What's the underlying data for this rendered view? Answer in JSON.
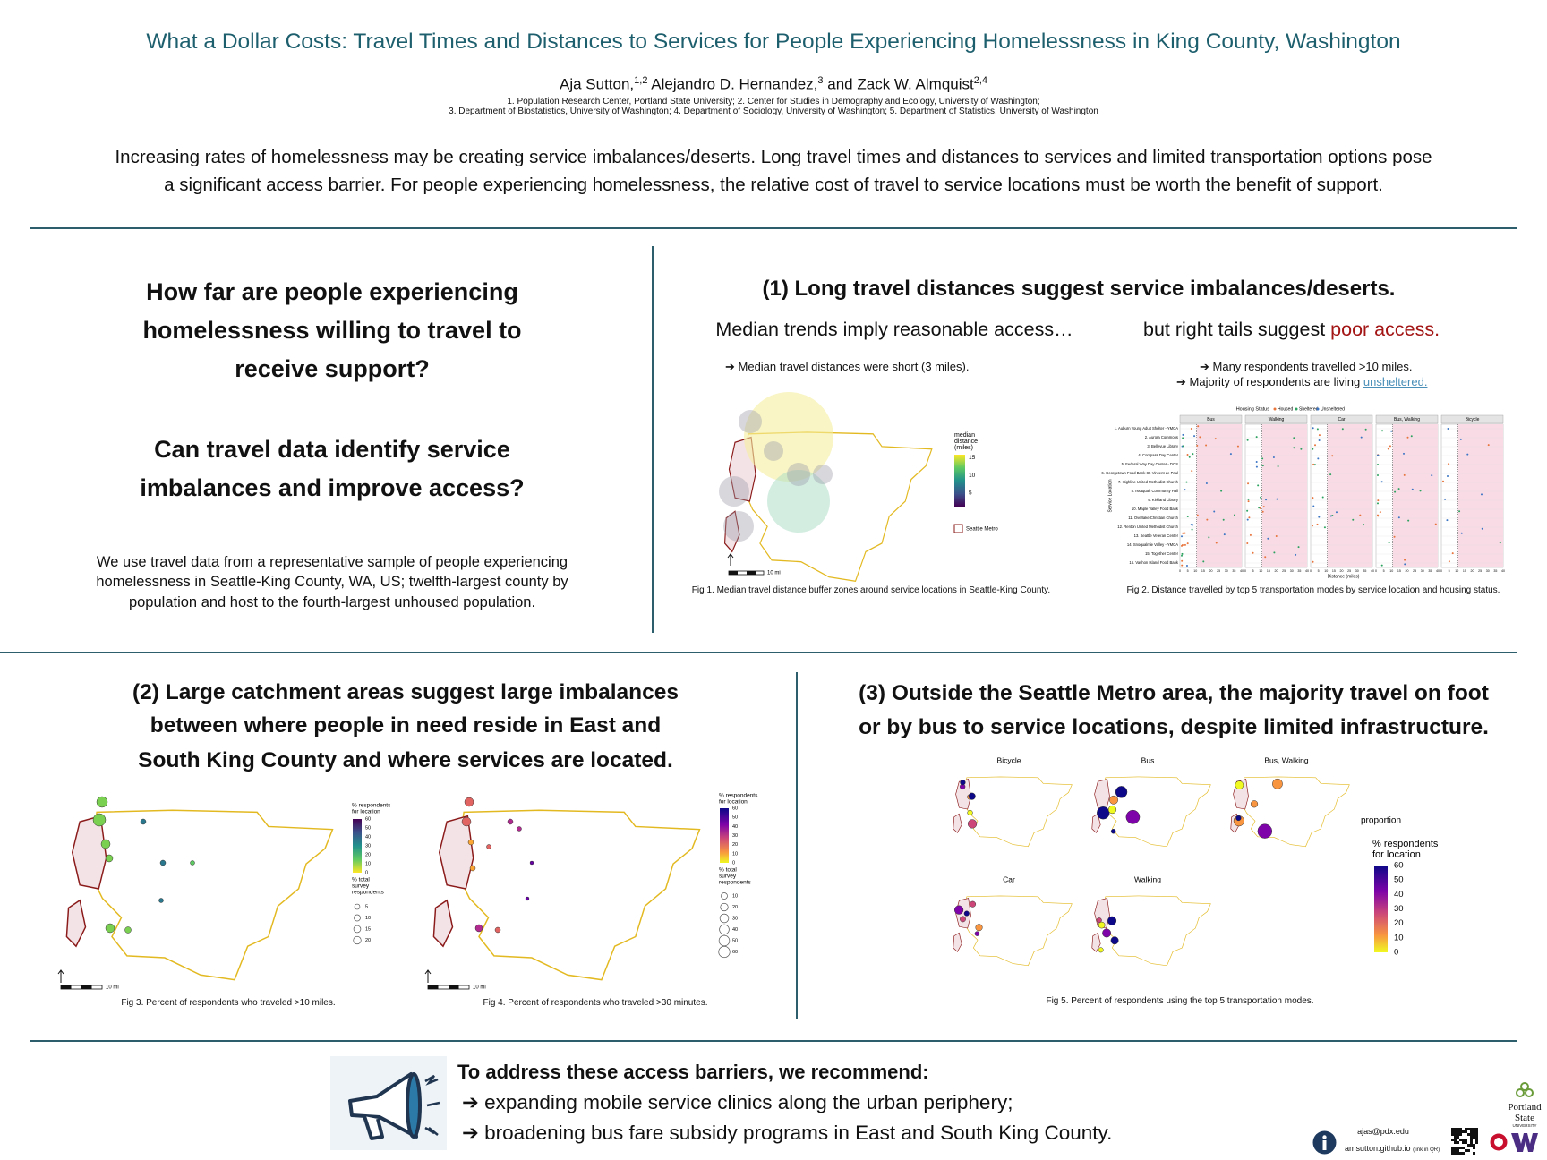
{
  "header": {
    "title": "What a Dollar Costs: Travel Times and Distances to Services for People Experiencing Homelessness in King County, Washington",
    "authors": [
      {
        "name": "Aja Sutton,",
        "sup": "1,2"
      },
      {
        "name": "Alejandro D. Hernandez,",
        "sup": "3"
      },
      {
        "name": "and Zack W. Almquist",
        "sup": "2,4"
      }
    ],
    "affiliations": [
      "1. Population Research Center, Portland State University; 2. Center for Studies in Demography and Ecology, University of Washington;",
      "3. Department of Biostatistics, University of Washington; 4. Department of Sociology, University of Washington; 5. Department of Statistics, University of Washington"
    ]
  },
  "intro": [
    "Increasing rates of homelessness may be creating service imbalances/deserts. Long travel times and distances to services and limited transportation options pose",
    "a significant access barrier. For people experiencing homelessness, the relative cost of travel to service locations must be worth the benefit of support."
  ],
  "questions": {
    "first": [
      "How far are people experiencing",
      "homelessness willing to travel to",
      "receive support?"
    ],
    "second": [
      "Can travel data identify service",
      "imbalances and improve access?"
    ],
    "description": [
      "We use travel data from a representative sample of people experiencing",
      "homelessness in Seattle-King County, WA, US; twelfth-largest county by",
      "population and host to the fourth-largest unhoused population."
    ]
  },
  "section1": {
    "heading": "(1) Long travel distances suggest service imbalances/deserts.",
    "left_subheading": "Median trends imply reasonable access…",
    "right_subheading": "but right tails suggest ",
    "right_highlight": "poor access.",
    "left_bullet": "➔ Median travel distances were short (3 miles).",
    "right_bullet": "➔ Many respondents travelled >10 miles.",
    "right_bullet_prefix": "➔ Majority of respondents are living ",
    "right_bullet_link": "unsheltered.",
    "fig1": {
      "caption": "Fig 1. Median travel distance buffer zones around service locations in Seattle-King County.",
      "legend_title": [
        "median",
        "distance",
        "(miles)"
      ],
      "ticks": [
        15,
        10,
        5
      ],
      "metro_label": "Seattle Metro",
      "scale_label": "10 mi"
    },
    "fig2": {
      "caption": "Fig 2. Distance travelled by top 5 transportation modes by service location and housing status.",
      "legend_title": "Housing Status",
      "legend_items": [
        "Housed",
        "Sheltered",
        "Unsheltered"
      ],
      "facets": [
        "Bus",
        "Walking",
        "Car",
        "Bus, Walking",
        "Bicycle"
      ],
      "y_label": "Service Location",
      "x_label": "Distance (miles)",
      "xticks": [
        0,
        5,
        10,
        15,
        20,
        25,
        30,
        35,
        40
      ],
      "locations": [
        "1. Auburn Young Adult Shelter - YMCA",
        "2. Aurora Commons",
        "3. Bellevue Library",
        "4. Compass Day Center",
        "5. Federal Way Day Center - DOS",
        "6. Georgetown Food Bank St. Vincent de Paul",
        "7. Highline United Methodist Church",
        "8. Issaquah Community Hall",
        "9. Kirkland Library",
        "10. Maple Valley Food Bank",
        "11. Overlake Christian Church",
        "12. Renton United Methodist Church",
        "13. Seattle Veteran Center",
        "14. Snoqualmie Valley - YMCA",
        "15. Together Center",
        "16. Vashon Island Food Bank"
      ]
    }
  },
  "section2": {
    "heading": [
      "(2) Large catchment areas suggest large imbalances",
      "between where people in need reside in East and",
      "South King County and where services are located."
    ],
    "fig3": {
      "caption": "Fig 3. Percent of respondents who traveled >10 miles.",
      "color_title": [
        "% respondents",
        "for location"
      ],
      "color_ticks": [
        60,
        50,
        40,
        30,
        20,
        10,
        0
      ],
      "size_title": [
        "% total",
        "survey",
        "respondents"
      ],
      "size_ticks": [
        5,
        10,
        15,
        20
      ],
      "scale_label": "10 mi"
    },
    "fig4": {
      "caption": "Fig 4. Percent of respondents who traveled >30 minutes.",
      "color_title": [
        "% respondents",
        "for location"
      ],
      "color_ticks": [
        60,
        50,
        40,
        30,
        20,
        10,
        0
      ],
      "size_title": [
        "% total",
        "survey",
        "respondents"
      ],
      "size_ticks": [
        10,
        20,
        30,
        40,
        50,
        60
      ],
      "scale_label": "10 mi"
    }
  },
  "section3": {
    "heading": [
      "(3) Outside the Seattle Metro area, the majority travel on foot",
      "or by bus to service locations, despite limited infrastructure."
    ],
    "panels": [
      "Bicycle",
      "Bus",
      "Bus, Walking",
      "Car",
      "Walking"
    ],
    "legend_heading": "proportion",
    "legend_title": [
      "% respondents",
      "for location"
    ],
    "ticks": [
      60,
      50,
      40,
      30,
      20,
      10,
      0
    ],
    "caption": "Fig 5. Percent of respondents using the top 5 transportation modes."
  },
  "footer": {
    "title": "To address these access barriers, we recommend:",
    "items": [
      "➔ expanding mobile service clinics along the urban periphery;",
      "➔ broadening bus fare subsidy programs in East and South King County."
    ],
    "email": "ajas@pdx.edu",
    "website": "amsutton.github.io",
    "website_note": "(link in QR)",
    "logo": [
      "Portland",
      "State",
      "UNIVERSITY"
    ]
  }
}
